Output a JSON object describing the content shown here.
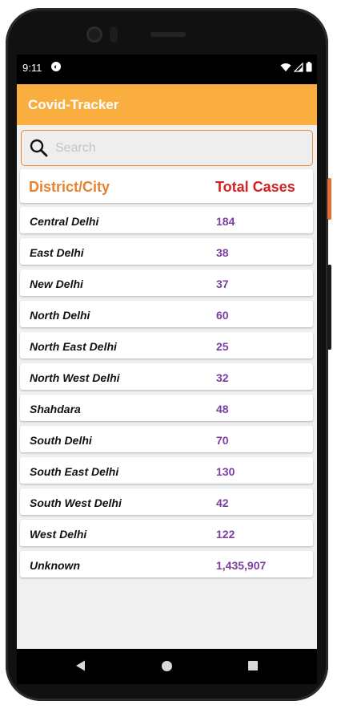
{
  "status_bar": {
    "time": "9:11",
    "app_icon_glyph": "◐",
    "icons": [
      "wifi-icon",
      "signal-icon",
      "battery-icon"
    ]
  },
  "app": {
    "title": "Covid-Tracker"
  },
  "search": {
    "placeholder": "Search",
    "value": ""
  },
  "table": {
    "headers": {
      "district": "District/City",
      "total": "Total Cases"
    },
    "rows": [
      {
        "name": "Central Delhi",
        "cases": "184"
      },
      {
        "name": "East Delhi",
        "cases": "38"
      },
      {
        "name": "New Delhi",
        "cases": "37"
      },
      {
        "name": "North Delhi",
        "cases": "60"
      },
      {
        "name": "North East Delhi",
        "cases": "25"
      },
      {
        "name": "North West Delhi",
        "cases": "32"
      },
      {
        "name": "Shahdara",
        "cases": "48"
      },
      {
        "name": "South Delhi",
        "cases": "70"
      },
      {
        "name": "South East Delhi",
        "cases": "130"
      },
      {
        "name": "South West Delhi",
        "cases": "42"
      },
      {
        "name": "West Delhi",
        "cases": "122"
      },
      {
        "name": "Unknown",
        "cases": "1,435,907"
      }
    ]
  },
  "colors": {
    "toolbar": "#fbae40",
    "header_district": "#e9822e",
    "header_total": "#d42323",
    "case_value": "#7a3fa0"
  },
  "nav_bar": {
    "icons": [
      "back-icon",
      "home-icon",
      "recents-icon"
    ]
  }
}
